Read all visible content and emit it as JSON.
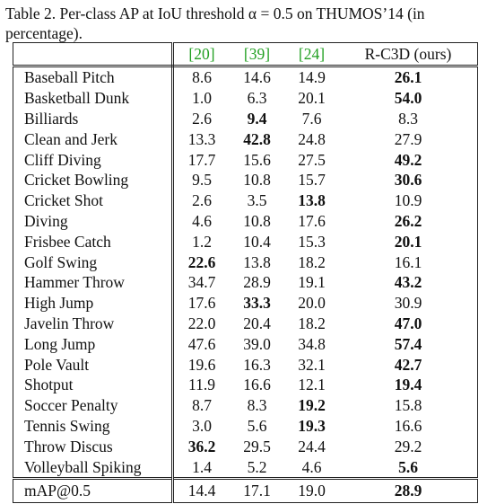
{
  "caption": "Table 2. Per-class AP at IoU threshold α = 0.5 on THUMOS’14 (in percentage).",
  "table": {
    "header": [
      {
        "text": "[20]",
        "color": "#22a022"
      },
      {
        "text": "[39]",
        "color": "#22a022"
      },
      {
        "text": "[24]",
        "color": "#22a022"
      },
      {
        "text": "R-C3D (ours)",
        "color": "#111111"
      }
    ],
    "rows": [
      {
        "label": "Baseball Pitch",
        "values": [
          "8.6",
          "14.6",
          "14.9",
          "26.1"
        ],
        "bold": 3
      },
      {
        "label": "Basketball Dunk",
        "values": [
          "1.0",
          "6.3",
          "20.1",
          "54.0"
        ],
        "bold": 3
      },
      {
        "label": "Billiards",
        "values": [
          "2.6",
          "9.4",
          "7.6",
          "8.3"
        ],
        "bold": 1
      },
      {
        "label": "Clean and Jerk",
        "values": [
          "13.3",
          "42.8",
          "24.8",
          "27.9"
        ],
        "bold": 1
      },
      {
        "label": "Cliff Diving",
        "values": [
          "17.7",
          "15.6",
          "27.5",
          "49.2"
        ],
        "bold": 3
      },
      {
        "label": "Cricket Bowling",
        "values": [
          "9.5",
          "10.8",
          "15.7",
          "30.6"
        ],
        "bold": 3
      },
      {
        "label": "Cricket Shot",
        "values": [
          "2.6",
          "3.5",
          "13.8",
          "10.9"
        ],
        "bold": 2
      },
      {
        "label": "Diving",
        "values": [
          "4.6",
          "10.8",
          "17.6",
          "26.2"
        ],
        "bold": 3
      },
      {
        "label": "Frisbee Catch",
        "values": [
          "1.2",
          "10.4",
          "15.3",
          "20.1"
        ],
        "bold": 3
      },
      {
        "label": "Golf Swing",
        "values": [
          "22.6",
          "13.8",
          "18.2",
          "16.1"
        ],
        "bold": 0
      },
      {
        "label": "Hammer Throw",
        "values": [
          "34.7",
          "28.9",
          "19.1",
          "43.2"
        ],
        "bold": 3
      },
      {
        "label": "High Jump",
        "values": [
          "17.6",
          "33.3",
          "20.0",
          "30.9"
        ],
        "bold": 1
      },
      {
        "label": "Javelin Throw",
        "values": [
          "22.0",
          "20.4",
          "18.2",
          "47.0"
        ],
        "bold": 3
      },
      {
        "label": "Long Jump",
        "values": [
          "47.6",
          "39.0",
          "34.8",
          "57.4"
        ],
        "bold": 3
      },
      {
        "label": "Pole Vault",
        "values": [
          "19.6",
          "16.3",
          "32.1",
          "42.7"
        ],
        "bold": 3
      },
      {
        "label": "Shotput",
        "values": [
          "11.9",
          "16.6",
          "12.1",
          "19.4"
        ],
        "bold": 3
      },
      {
        "label": "Soccer Penalty",
        "values": [
          "8.7",
          "8.3",
          "19.2",
          "15.8"
        ],
        "bold": 2
      },
      {
        "label": "Tennis Swing",
        "values": [
          "3.0",
          "5.6",
          "19.3",
          "16.6"
        ],
        "bold": 2
      },
      {
        "label": "Throw Discus",
        "values": [
          "36.2",
          "29.5",
          "24.4",
          "29.2"
        ],
        "bold": 0
      },
      {
        "label": "Volleyball Spiking",
        "values": [
          "1.4",
          "5.2",
          "4.6",
          "5.6"
        ],
        "bold": 3
      }
    ],
    "footer": {
      "label": "mAP@0.5",
      "values": [
        "14.4",
        "17.1",
        "19.0",
        "28.9"
      ],
      "bold": 3
    }
  }
}
